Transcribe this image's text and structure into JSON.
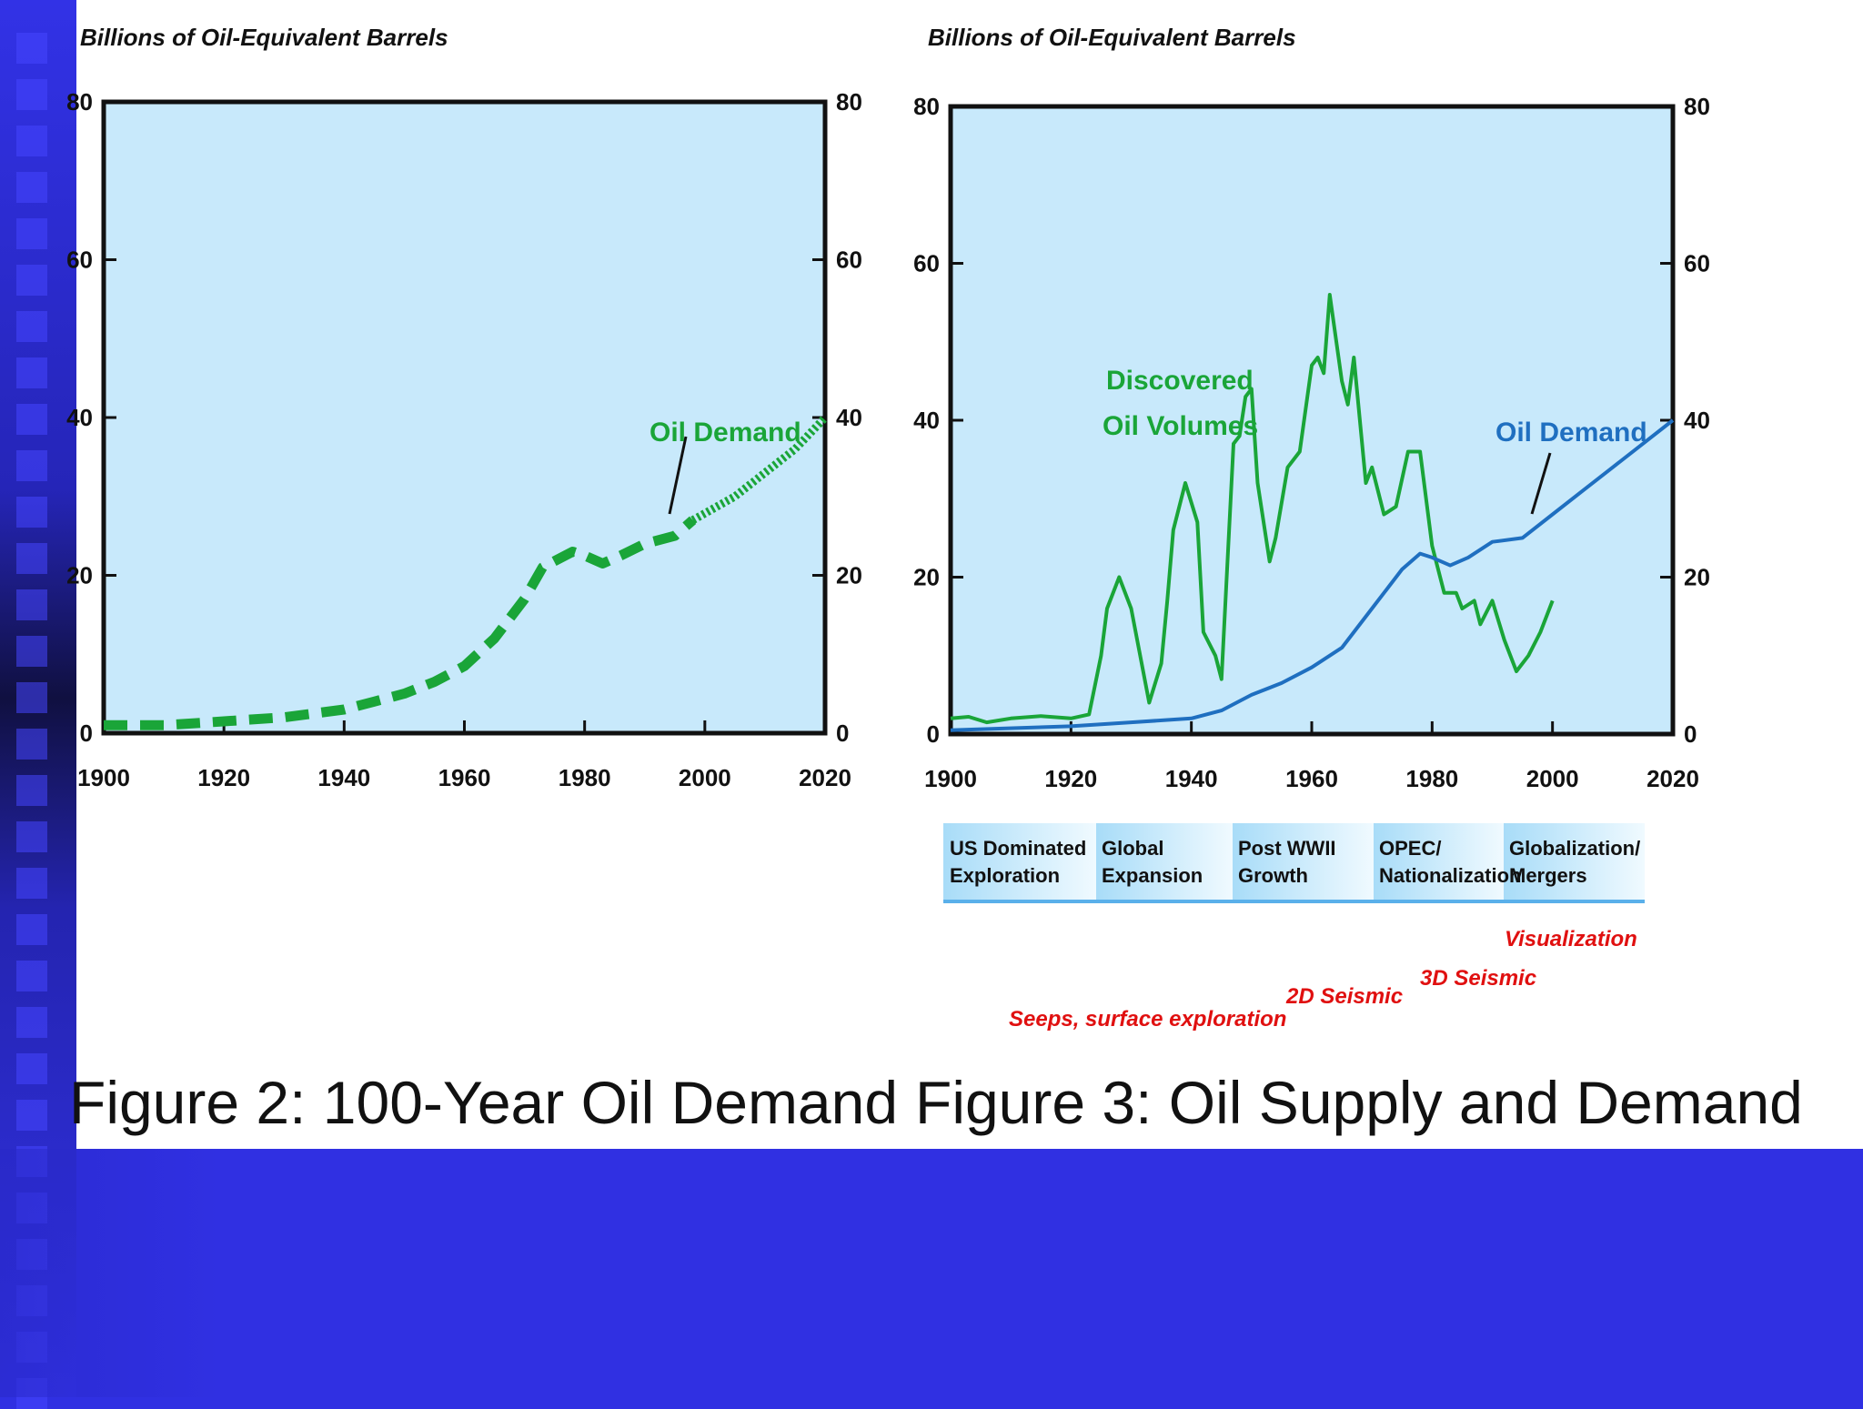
{
  "chart_data": [
    {
      "type": "line",
      "caption": "Figure 2: 100-Year Oil Demand",
      "ylabel": "Billions of Oil-Equivalent Barrels",
      "xlim": [
        1900,
        2020
      ],
      "ylim": [
        0,
        80
      ],
      "x_ticks": [
        "1900",
        "1920",
        "1940",
        "1960",
        "1980",
        "2000",
        "2020"
      ],
      "y_ticks_left": [
        "0",
        "20",
        "40",
        "60",
        "80"
      ],
      "y_ticks_right": [
        "0",
        "20",
        "40",
        "60",
        "80"
      ],
      "series": [
        {
          "name": "Oil Demand",
          "color": "#1aa538",
          "style": "dashed",
          "points": [
            [
              1900,
              1
            ],
            [
              1910,
              1
            ],
            [
              1920,
              1.5
            ],
            [
              1930,
              2
            ],
            [
              1940,
              3
            ],
            [
              1945,
              4
            ],
            [
              1950,
              5
            ],
            [
              1955,
              6.5
            ],
            [
              1960,
              8.5
            ],
            [
              1965,
              12
            ],
            [
              1970,
              17
            ],
            [
              1973,
              21
            ],
            [
              1978,
              23
            ],
            [
              1980,
              22.5
            ],
            [
              1983,
              21.5
            ],
            [
              1986,
              22.5
            ],
            [
              1990,
              24
            ],
            [
              1995,
              25
            ],
            [
              1998,
              27
            ]
          ]
        },
        {
          "name": "Oil Demand (projected)",
          "color": "#1aa538",
          "style": "dotted",
          "points": [
            [
              1998,
              27
            ],
            [
              2005,
              30
            ],
            [
              2010,
              33
            ],
            [
              2015,
              36
            ],
            [
              2020,
              40
            ]
          ]
        }
      ]
    },
    {
      "type": "line",
      "caption": "Figure 3: Oil Supply and Demand",
      "ylabel": "Billions of Oil-Equivalent Barrels",
      "xlim": [
        1900,
        2020
      ],
      "ylim": [
        0,
        80
      ],
      "x_ticks": [
        "1900",
        "1920",
        "1940",
        "1960",
        "1980",
        "2000",
        "2020"
      ],
      "y_ticks_left": [
        "0",
        "20",
        "40",
        "60",
        "80"
      ],
      "y_ticks_right": [
        "0",
        "20",
        "40",
        "60",
        "80"
      ],
      "series": [
        {
          "name": "Discovered Oil Volumes",
          "color": "#1aa538",
          "points": [
            [
              1900,
              2
            ],
            [
              1903,
              2.2
            ],
            [
              1906,
              1.5
            ],
            [
              1910,
              2
            ],
            [
              1915,
              2.3
            ],
            [
              1920,
              2
            ],
            [
              1923,
              2.5
            ],
            [
              1925,
              10
            ],
            [
              1926,
              16
            ],
            [
              1928,
              20
            ],
            [
              1930,
              16
            ],
            [
              1932,
              8
            ],
            [
              1933,
              4
            ],
            [
              1935,
              9
            ],
            [
              1936,
              17
            ],
            [
              1937,
              26
            ],
            [
              1939,
              32
            ],
            [
              1941,
              27
            ],
            [
              1942,
              13
            ],
            [
              1944,
              10
            ],
            [
              1945,
              7
            ],
            [
              1947,
              37
            ],
            [
              1948,
              38
            ],
            [
              1949,
              43
            ],
            [
              1950,
              44
            ],
            [
              1951,
              32
            ],
            [
              1953,
              22
            ],
            [
              1954,
              25
            ],
            [
              1956,
              34
            ],
            [
              1958,
              36
            ],
            [
              1960,
              47
            ],
            [
              1961,
              48
            ],
            [
              1962,
              46
            ],
            [
              1963,
              56
            ],
            [
              1965,
              45
            ],
            [
              1966,
              42
            ],
            [
              1967,
              48
            ],
            [
              1969,
              32
            ],
            [
              1970,
              34
            ],
            [
              1972,
              28
            ],
            [
              1974,
              29
            ],
            [
              1976,
              36
            ],
            [
              1978,
              36
            ],
            [
              1980,
              24
            ],
            [
              1982,
              18
            ],
            [
              1984,
              18
            ],
            [
              1985,
              16
            ],
            [
              1987,
              17
            ],
            [
              1988,
              14
            ],
            [
              1990,
              17
            ],
            [
              1992,
              12
            ],
            [
              1994,
              8
            ],
            [
              1996,
              10
            ],
            [
              1998,
              13
            ],
            [
              2000,
              17
            ]
          ]
        },
        {
          "name": "Oil Demand",
          "color": "#1f6fc0",
          "points": [
            [
              1900,
              0.5
            ],
            [
              1920,
              1
            ],
            [
              1930,
              1.5
            ],
            [
              1940,
              2
            ],
            [
              1945,
              3
            ],
            [
              1950,
              5
            ],
            [
              1955,
              6.5
            ],
            [
              1960,
              8.5
            ],
            [
              1965,
              11
            ],
            [
              1970,
              16
            ],
            [
              1975,
              21
            ],
            [
              1978,
              23
            ],
            [
              1980,
              22.5
            ],
            [
              1983,
              21.5
            ],
            [
              1986,
              22.5
            ],
            [
              1990,
              24.5
            ],
            [
              1995,
              25
            ],
            [
              2000,
              28
            ],
            [
              2005,
              31
            ],
            [
              2010,
              34
            ],
            [
              2015,
              37
            ],
            [
              2020,
              40
            ]
          ]
        }
      ]
    }
  ],
  "figure2": {
    "axis_title": "Billions of Oil-Equivalent Barrels",
    "series_label": "Oil Demand",
    "caption": "Figure 2: 100-Year Oil Demand"
  },
  "figure3": {
    "axis_title": "Billions of Oil-Equivalent Barrels",
    "label_discovered_line1": "Discovered",
    "label_discovered_line2": "Oil Volumes",
    "label_demand": "Oil Demand",
    "caption": "Figure 3: Oil Supply and Demand",
    "eras": [
      {
        "line1": "US Dominated",
        "line2": "Exploration"
      },
      {
        "line1": "Global",
        "line2": "Expansion"
      },
      {
        "line1": "Post WWII",
        "line2": "Growth"
      },
      {
        "line1": "OPEC/",
        "line2": "Nationalization"
      },
      {
        "line1": "Globalization/",
        "line2": "Mergers"
      }
    ],
    "technologies": {
      "seeps": "Seeps, surface exploration",
      "seismic_2d": "2D Seismic",
      "seismic_3d": "3D Seismic",
      "visualization": "Visualization"
    }
  }
}
